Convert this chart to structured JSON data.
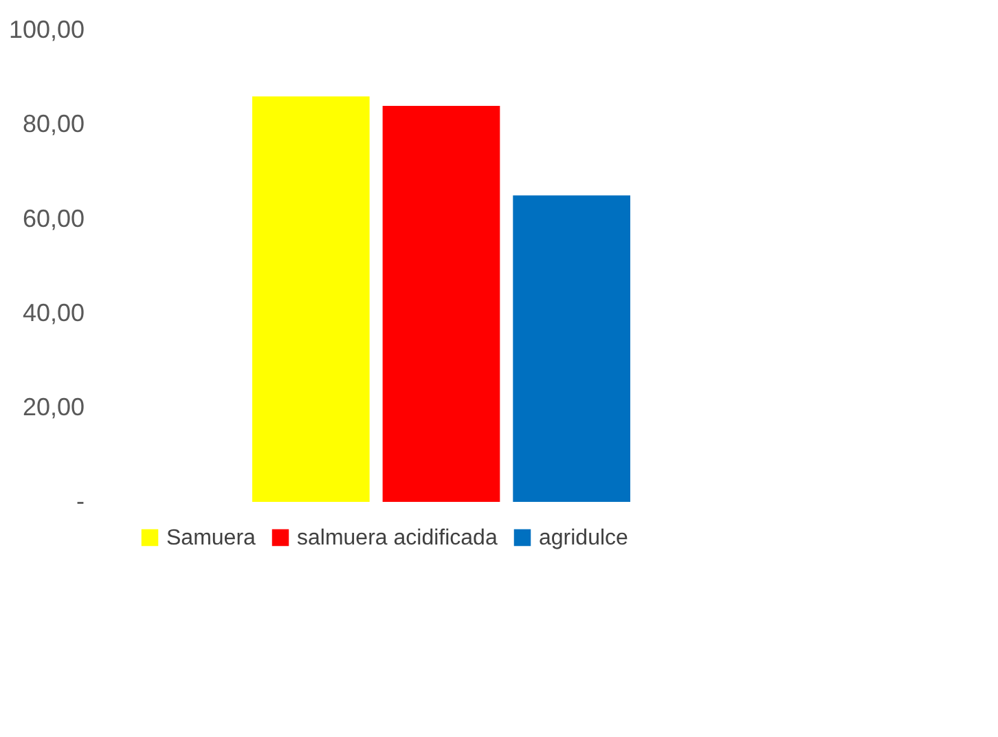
{
  "chart_data": {
    "type": "bar",
    "categories": [
      null
    ],
    "series": [
      {
        "name": "Samuera",
        "color": "#ffff00",
        "values": [
          86
        ]
      },
      {
        "name": "salmuera acidificada",
        "color": "#ff0000",
        "values": [
          84
        ]
      },
      {
        "name": "agridulce",
        "color": "#0070c0",
        "values": [
          65
        ]
      }
    ],
    "ylim": [
      0,
      105
    ],
    "yticks": [
      {
        "value": 0,
        "label": "-"
      },
      {
        "value": 20,
        "label": "20,00"
      },
      {
        "value": 40,
        "label": "40,00"
      },
      {
        "value": 60,
        "label": "60,00"
      },
      {
        "value": 80,
        "label": "80,00"
      },
      {
        "value": 100,
        "label": "100,00"
      }
    ],
    "grid": false,
    "legend": "bottom"
  }
}
